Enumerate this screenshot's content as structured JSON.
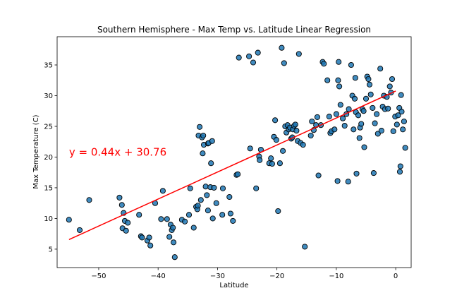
{
  "chart_data": {
    "type": "scatter",
    "title": "Southern Hemisphere - Max Temp vs. Latitude Linear Regression",
    "xlabel": "Latitude",
    "ylabel": "Max Temperature (C)",
    "xlim": [
      -57,
      2.6
    ],
    "ylim": [
      2,
      39.6
    ],
    "xticks": [
      -50,
      -40,
      -30,
      -20,
      -10,
      0
    ],
    "yticks": [
      5,
      10,
      15,
      20,
      25,
      30,
      35
    ],
    "grid": false,
    "legend": false,
    "colors": {
      "points": "#1f77b4",
      "point_edge": "#000000",
      "line": "#ff0000",
      "annotation": "#ff0000"
    },
    "annotation": {
      "text": "y = 0.44x + 30.76",
      "x": -55,
      "y": 20.2
    },
    "regression": {
      "slope": 0.44,
      "intercept": 30.76,
      "x_range": [
        -55,
        0
      ]
    },
    "points": [
      [
        -55.0,
        9.8
      ],
      [
        -53.2,
        8.1
      ],
      [
        -51.6,
        13.0
      ],
      [
        -46.5,
        13.4
      ],
      [
        -46.1,
        12.2
      ],
      [
        -46.0,
        8.4
      ],
      [
        -45.8,
        10.9
      ],
      [
        -45.6,
        9.6
      ],
      [
        -45.4,
        8.0
      ],
      [
        -45.1,
        9.3
      ],
      [
        -43.2,
        10.6
      ],
      [
        -42.9,
        7.1
      ],
      [
        -42.7,
        6.9
      ],
      [
        -41.8,
        6.4
      ],
      [
        -41.5,
        6.9
      ],
      [
        -41.3,
        5.6
      ],
      [
        -40.5,
        12.5
      ],
      [
        -39.5,
        9.9
      ],
      [
        -39.2,
        14.5
      ],
      [
        -38.5,
        9.9
      ],
      [
        -38.1,
        7.0
      ],
      [
        -37.9,
        9.0
      ],
      [
        -37.7,
        8.1
      ],
      [
        -37.5,
        8.5
      ],
      [
        -37.4,
        6.1
      ],
      [
        -37.2,
        3.7
      ],
      [
        -36.0,
        9.8
      ],
      [
        -35.5,
        9.5
      ],
      [
        -34.8,
        10.6
      ],
      [
        -34.6,
        14.9
      ],
      [
        -34.0,
        8.5
      ],
      [
        -33.6,
        11.9
      ],
      [
        -33.4,
        11.5
      ],
      [
        -33.3,
        12.1
      ],
      [
        -33.2,
        23.5
      ],
      [
        -33.0,
        24.9
      ],
      [
        -32.8,
        13.0
      ],
      [
        -32.6,
        23.2
      ],
      [
        -32.5,
        20.6
      ],
      [
        -32.4,
        23.5
      ],
      [
        -32.3,
        22.0
      ],
      [
        -32.0,
        15.2
      ],
      [
        -31.8,
        13.8
      ],
      [
        -31.6,
        11.3
      ],
      [
        -31.6,
        22.2
      ],
      [
        -31.5,
        22.3
      ],
      [
        -31.2,
        15.1
      ],
      [
        -31.1,
        19.0
      ],
      [
        -30.9,
        22.6
      ],
      [
        -30.8,
        10.0
      ],
      [
        -30.6,
        15.0
      ],
      [
        -30.2,
        12.5
      ],
      [
        -29.2,
        10.6
      ],
      [
        -29.1,
        14.9
      ],
      [
        -28.0,
        13.5
      ],
      [
        -27.8,
        10.8
      ],
      [
        -27.4,
        9.6
      ],
      [
        -26.8,
        17.1
      ],
      [
        -26.6,
        17.2
      ],
      [
        -26.4,
        36.2
      ],
      [
        -24.7,
        36.4
      ],
      [
        -24.5,
        21.4
      ],
      [
        -24.0,
        35.4
      ],
      [
        -23.5,
        14.9
      ],
      [
        -23.2,
        37.0
      ],
      [
        -23.0,
        20.1
      ],
      [
        -22.9,
        19.5
      ],
      [
        -22.7,
        21.2
      ],
      [
        -21.3,
        19.0
      ],
      [
        -21.0,
        19.8
      ],
      [
        -20.8,
        18.9
      ],
      [
        -20.5,
        23.3
      ],
      [
        -20.3,
        26.0
      ],
      [
        -20.1,
        22.8
      ],
      [
        -19.8,
        11.2
      ],
      [
        -19.5,
        19.0
      ],
      [
        -19.2,
        37.8
      ],
      [
        -19.0,
        21.0
      ],
      [
        -18.8,
        35.3
      ],
      [
        -18.6,
        25.0
      ],
      [
        -18.4,
        24.0
      ],
      [
        -18.2,
        25.2
      ],
      [
        -18.0,
        24.5
      ],
      [
        -17.8,
        24.8
      ],
      [
        -17.6,
        23.0
      ],
      [
        -17.4,
        23.2
      ],
      [
        -17.3,
        24.5
      ],
      [
        -17.1,
        25.1
      ],
      [
        -16.9,
        25.3
      ],
      [
        -16.7,
        24.3
      ],
      [
        -16.5,
        22.6
      ],
      [
        -16.3,
        36.8
      ],
      [
        -16.0,
        22.3
      ],
      [
        -15.6,
        22.0
      ],
      [
        -15.3,
        5.4
      ],
      [
        -14.3,
        23.5
      ],
      [
        -14.1,
        25.8
      ],
      [
        -13.8,
        24.4
      ],
      [
        -13.4,
        25.2
      ],
      [
        -13.2,
        26.5
      ],
      [
        -13.0,
        17.0
      ],
      [
        -12.6,
        25.2
      ],
      [
        -12.3,
        35.5
      ],
      [
        -12.1,
        35.2
      ],
      [
        -11.5,
        32.5
      ],
      [
        -11.2,
        26.6
      ],
      [
        -11.0,
        23.9
      ],
      [
        -10.8,
        24.2
      ],
      [
        -10.3,
        24.5
      ],
      [
        -10.0,
        27.0
      ],
      [
        -9.8,
        16.1
      ],
      [
        -9.7,
        32.5
      ],
      [
        -9.6,
        35.5
      ],
      [
        -9.5,
        31.5
      ],
      [
        -9.3,
        28.5
      ],
      [
        -8.9,
        26.3
      ],
      [
        -8.6,
        25.1
      ],
      [
        -8.3,
        27.0
      ],
      [
        -8.0,
        16.0
      ],
      [
        -7.9,
        27.8
      ],
      [
        -7.5,
        35.0
      ],
      [
        -7.3,
        30.0
      ],
      [
        -7.1,
        24.5
      ],
      [
        -6.9,
        29.5
      ],
      [
        -6.8,
        32.9
      ],
      [
        -6.7,
        27.3
      ],
      [
        -6.6,
        17.3
      ],
      [
        -6.3,
        26.8
      ],
      [
        -6.1,
        23.1
      ],
      [
        -6.0,
        24.8
      ],
      [
        -5.8,
        25.4
      ],
      [
        -5.6,
        27.8
      ],
      [
        -5.4,
        27.5
      ],
      [
        -5.3,
        21.6
      ],
      [
        -5.0,
        29.5
      ],
      [
        -4.8,
        33.1
      ],
      [
        -4.6,
        32.7
      ],
      [
        -4.4,
        31.8
      ],
      [
        -4.2,
        30.2
      ],
      [
        -3.9,
        28.0
      ],
      [
        -3.7,
        17.4
      ],
      [
        -3.5,
        25.5
      ],
      [
        -3.2,
        27.0
      ],
      [
        -3.0,
        23.8
      ],
      [
        -2.6,
        34.4
      ],
      [
        -2.4,
        24.3
      ],
      [
        -2.2,
        28.2
      ],
      [
        -2.0,
        30.0
      ],
      [
        -1.8,
        27.8
      ],
      [
        -1.5,
        29.8
      ],
      [
        -1.3,
        27.9
      ],
      [
        -1.0,
        31.5
      ],
      [
        -0.8,
        30.5
      ],
      [
        -0.6,
        32.7
      ],
      [
        -0.4,
        24.2
      ],
      [
        -0.1,
        26.6
      ],
      [
        0.2,
        25.3
      ],
      [
        0.4,
        26.8
      ],
      [
        0.6,
        28.0
      ],
      [
        0.7,
        17.6
      ],
      [
        0.8,
        18.5
      ],
      [
        0.9,
        30.1
      ],
      [
        1.0,
        27.4
      ],
      [
        1.2,
        24.5
      ],
      [
        1.4,
        25.8
      ],
      [
        1.6,
        21.5
      ]
    ]
  }
}
